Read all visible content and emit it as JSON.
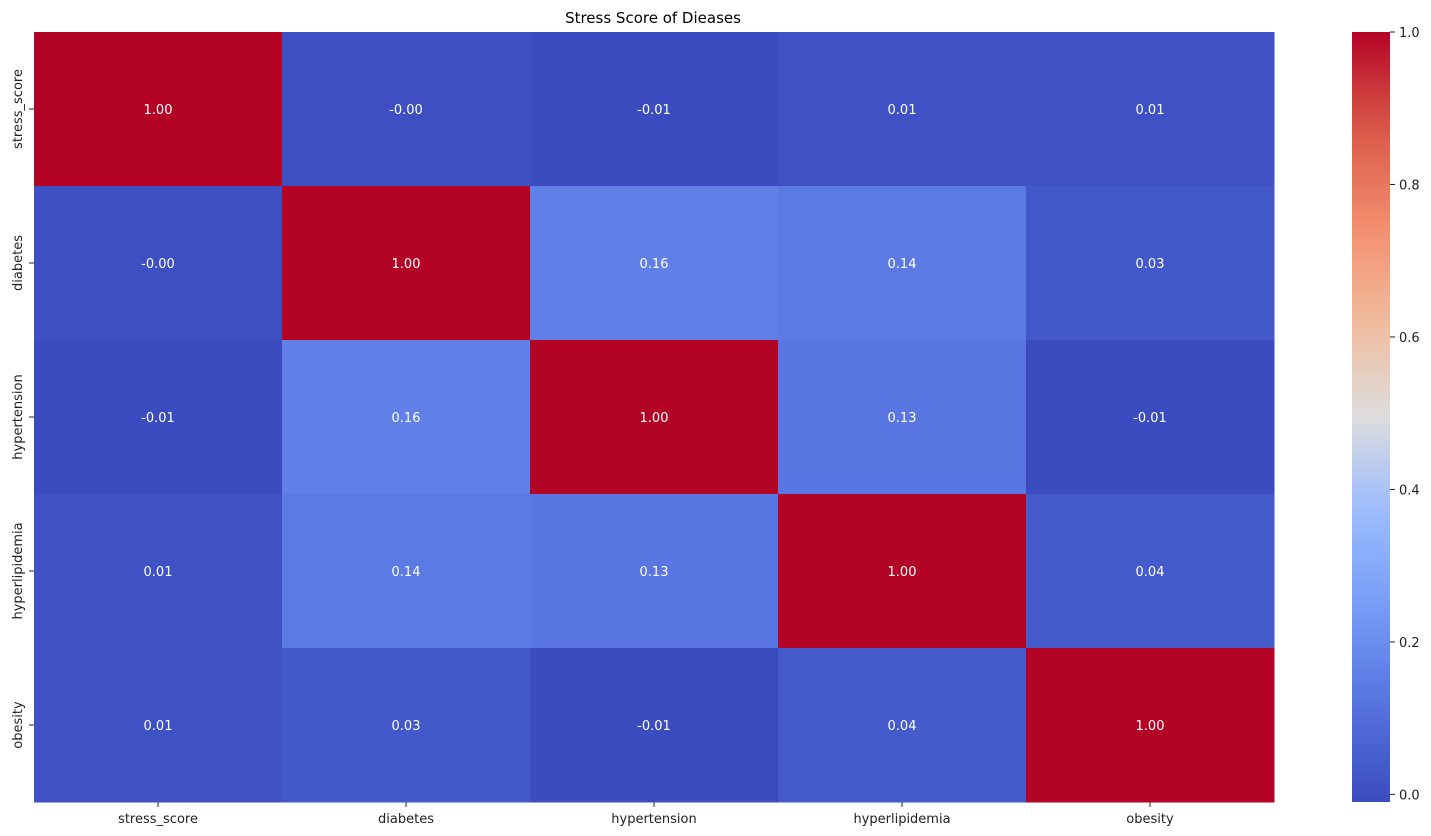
{
  "chart_data": {
    "type": "heatmap",
    "title": "Stress Score of Dieases",
    "x_labels": [
      "stress_score",
      "diabetes",
      "hypertension",
      "hyperlipidemia",
      "obesity"
    ],
    "y_labels": [
      "stress_score",
      "diabetes",
      "hypertension",
      "hyperlipidemia",
      "obesity"
    ],
    "values": [
      [
        1.0,
        -0.0,
        -0.01,
        0.01,
        0.01
      ],
      [
        -0.0,
        1.0,
        0.16,
        0.14,
        0.03
      ],
      [
        -0.01,
        0.16,
        1.0,
        0.13,
        -0.01
      ],
      [
        0.01,
        0.14,
        0.13,
        1.0,
        0.04
      ],
      [
        0.01,
        0.03,
        -0.01,
        0.04,
        1.0
      ]
    ],
    "annotation_format": "0.00",
    "colormap": "coolwarm",
    "colorbar": {
      "range": [
        -0.01,
        1.0
      ],
      "ticks": [
        0.0,
        0.2,
        0.4,
        0.6,
        0.8,
        1.0
      ],
      "tick_labels": [
        "0.0",
        "0.2",
        "0.4",
        "0.6",
        "0.8",
        "1.0"
      ]
    }
  }
}
